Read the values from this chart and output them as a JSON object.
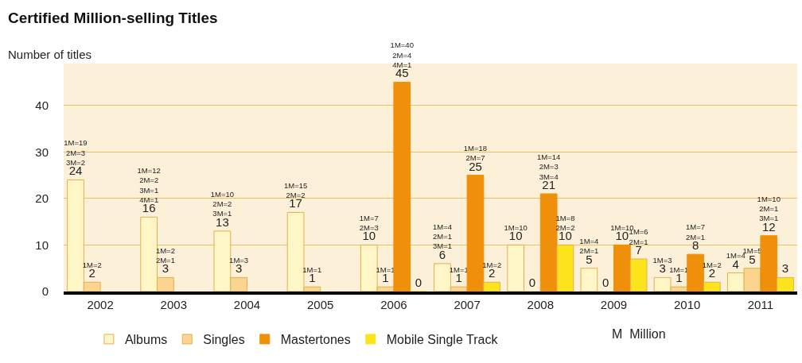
{
  "chart_data": {
    "type": "bar",
    "title": "Certified Million-selling Titles",
    "ylabel": "Number of titles",
    "categories": [
      "2002",
      "2003",
      "2004",
      "2005",
      "2006",
      "2007",
      "2008",
      "2009",
      "2010",
      "2011"
    ],
    "series": [
      {
        "name": "Albums",
        "color": "#fff6c8",
        "values": [
          24,
          16,
          13,
          17,
          10,
          6,
          10,
          5,
          3,
          4
        ],
        "value_labels": [
          "1M=19\n2M=3\n3M=2\n24",
          "1M=12\n2M=2\n3M=1\n4M=1\n16",
          "1M=10\n2M=2\n3M=1\n13",
          "1M=15\n2M=2\n17",
          "1M=7\n2M=3\n10",
          "1M=4\n2M=1\n3M=1\n6",
          "1M=10\n10",
          "1M=4\n2M=1\n5",
          "1M=3\n3",
          "1M=4\n4"
        ]
      },
      {
        "name": "Singles",
        "color": "#fbd48e",
        "values": [
          2,
          3,
          3,
          1,
          1,
          1,
          0,
          0,
          1,
          5
        ],
        "value_labels": [
          "1M=2\n2",
          "1M=2\n2M=1\n3",
          "1M=3\n3",
          "1M=1\n1",
          "1M=1\n1",
          "1M=1\n1",
          "0",
          "0",
          "1M=1\n1",
          "1M=5\n5"
        ]
      },
      {
        "name": "Mastertones",
        "color": "#f0900a",
        "values": [
          null,
          null,
          null,
          null,
          45,
          25,
          21,
          10,
          8,
          12
        ],
        "value_labels": [
          null,
          null,
          null,
          null,
          "1M=40\n2M=4\n4M=1\n45",
          "1M=18\n2M=7\n25",
          "1M=14\n2M=3\n3M=4\n21",
          "1M=10\n10",
          "1M=7\n2M=1\n8",
          "1M=10\n2M=1\n3M=1\n12"
        ]
      },
      {
        "name": "Mobile Single Track",
        "color": "#fce41c",
        "values": [
          null,
          null,
          null,
          null,
          0,
          2,
          10,
          7,
          2,
          3
        ],
        "value_labels": [
          null,
          null,
          null,
          null,
          "0",
          "1M=2\n2",
          "1M=8\n2M=2\n10",
          "1M=6\n2M=1\n7",
          "1M=2\n2",
          "3"
        ]
      }
    ],
    "ylim": [
      0,
      49
    ],
    "yticks": [
      0,
      10,
      20,
      30,
      40
    ],
    "grid": "y",
    "legend": "bottom",
    "annotations": [
      "M  Million"
    ]
  }
}
